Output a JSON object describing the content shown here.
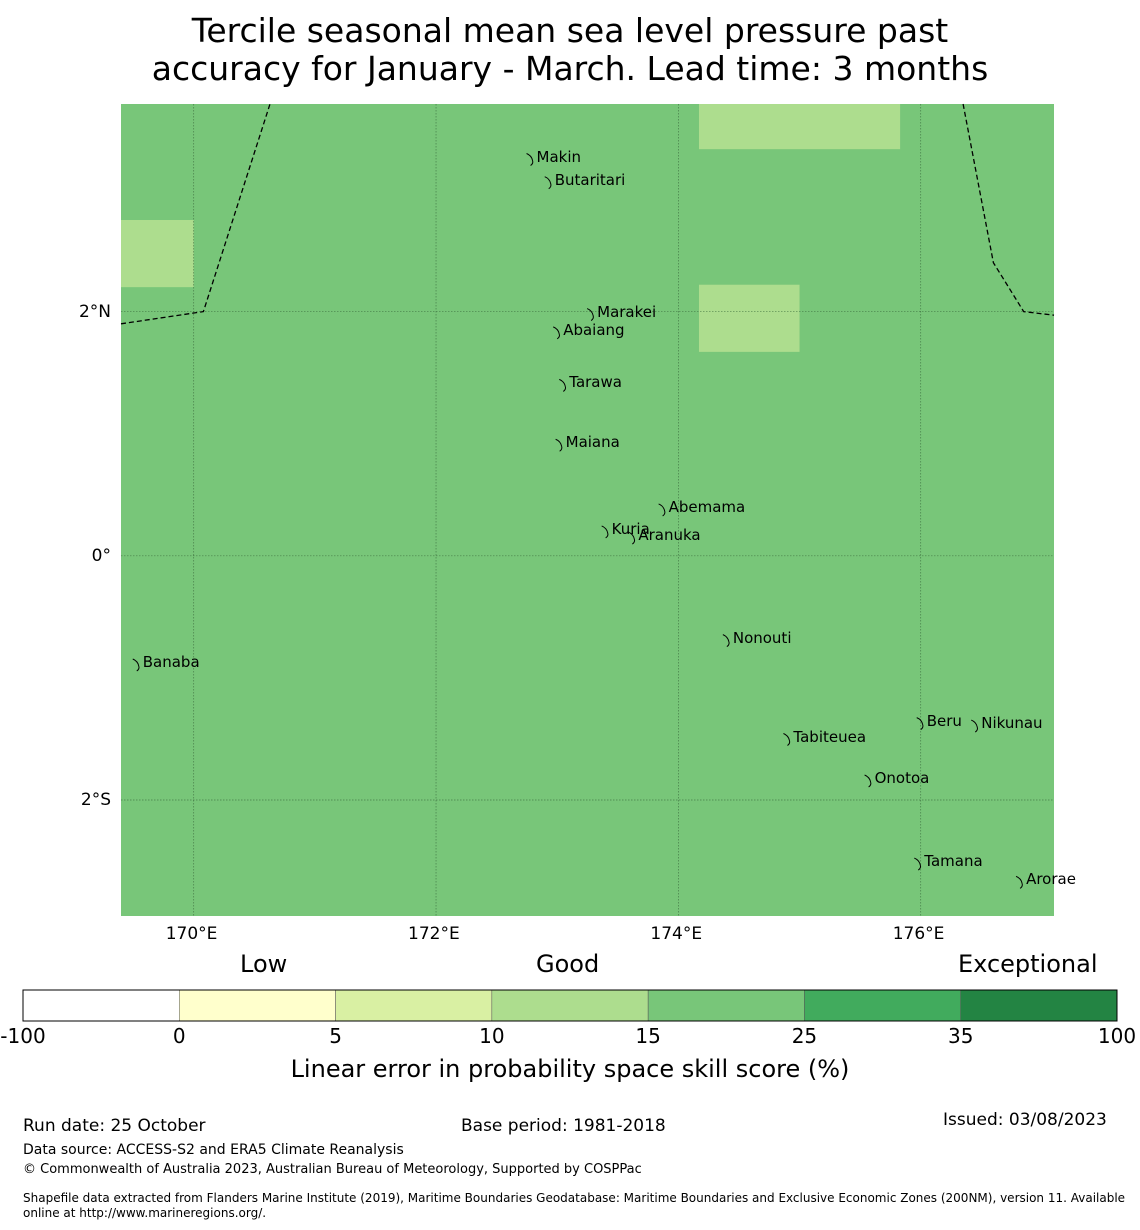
{
  "title": {
    "line1": "Tercile seasonal mean sea level pressure past",
    "line2": "accuracy for January - March. Lead time: 3 months"
  },
  "map": {
    "lon_range": [
      169.4,
      177.1
    ],
    "lat_range": [
      -2.95,
      3.7
    ],
    "base_color": "#78c679",
    "highlight_color": "#addd8e",
    "highlight_cells": [
      {
        "lon": [
          169.4,
          170.0
        ],
        "lat": [
          2.2,
          2.75
        ],
        "score_band": "10-15"
      },
      {
        "lon": [
          174.17,
          175.83
        ],
        "lat": [
          3.33,
          3.7
        ],
        "score_band": "10-15"
      },
      {
        "lon": [
          174.17,
          175.0
        ],
        "lat": [
          1.67,
          2.22
        ],
        "score_band": "10-15"
      }
    ],
    "x_ticks": [
      {
        "value": 170,
        "label": "170°E"
      },
      {
        "value": 172,
        "label": "172°E"
      },
      {
        "value": 174,
        "label": "174°E"
      },
      {
        "value": 176,
        "label": "176°E"
      }
    ],
    "y_ticks": [
      {
        "value": 2,
        "label": "2°N"
      },
      {
        "value": 0,
        "label": "0°"
      },
      {
        "value": -2,
        "label": "2°S"
      }
    ],
    "boundary_lines": [
      [
        [
          169.4,
          1.9
        ],
        [
          170.08,
          2.0
        ],
        [
          170.63,
          3.7
        ]
      ],
      [
        [
          176.35,
          3.7
        ],
        [
          176.6,
          2.4
        ],
        [
          176.85,
          2.0
        ],
        [
          177.1,
          1.97
        ]
      ]
    ],
    "islands": [
      {
        "name": "Makin",
        "lon": 172.78,
        "lat": 3.27
      },
      {
        "name": "Butaritari",
        "lon": 172.93,
        "lat": 3.08
      },
      {
        "name": "Marakei",
        "lon": 173.28,
        "lat": 2.0
      },
      {
        "name": "Abaiang",
        "lon": 173.0,
        "lat": 1.85
      },
      {
        "name": "Tarawa",
        "lon": 173.05,
        "lat": 1.42
      },
      {
        "name": "Maiana",
        "lon": 173.02,
        "lat": 0.93
      },
      {
        "name": "Abemama",
        "lon": 173.87,
        "lat": 0.4
      },
      {
        "name": "Kuria",
        "lon": 173.4,
        "lat": 0.22
      },
      {
        "name": "Aranuka",
        "lon": 173.62,
        "lat": 0.17
      },
      {
        "name": "Nonouti",
        "lon": 174.4,
        "lat": -0.67
      },
      {
        "name": "Banaba",
        "lon": 169.53,
        "lat": -0.87
      },
      {
        "name": "Beru",
        "lon": 176.0,
        "lat": -1.35
      },
      {
        "name": "Nikunau",
        "lon": 176.45,
        "lat": -1.37
      },
      {
        "name": "Tabiteuea",
        "lon": 174.9,
        "lat": -1.48
      },
      {
        "name": "Onotoa",
        "lon": 175.57,
        "lat": -1.82
      },
      {
        "name": "Tamana",
        "lon": 175.98,
        "lat": -2.5
      },
      {
        "name": "Arorae",
        "lon": 176.82,
        "lat": -2.65
      }
    ]
  },
  "colorbar": {
    "categories": {
      "low": "Low",
      "good": "Good",
      "exceptional": "Exceptional"
    },
    "boundaries": [
      "-100",
      "0",
      "5",
      "10",
      "15",
      "25",
      "35",
      "100"
    ],
    "colors": [
      "#ffffff",
      "#ffffcc",
      "#d9f0a3",
      "#addd8e",
      "#78c679",
      "#41ab5d",
      "#238443"
    ],
    "title": "Linear error in probability space skill score (%)"
  },
  "footer": {
    "run_date": "Run date: 25 October",
    "base_period": "Base period: 1981-2018",
    "issued": "Issued: 03/08/2023",
    "data_source": "Data source: ACCESS-S2 and ERA5 Climate Reanalysis",
    "copyright": "© Commonwealth of Australia 2023, Australian Bureau of Meteorology, Supported by COSPPac",
    "shapefile_line1": "Shapefile data extracted from Flanders Marine Institute (2019), Maritime Boundaries Geodatabase: Maritime Boundaries and Exclusive Economic Zones (200NM), version 11. Available",
    "shapefile_line2": "online at http://www.marineregions.org/."
  }
}
